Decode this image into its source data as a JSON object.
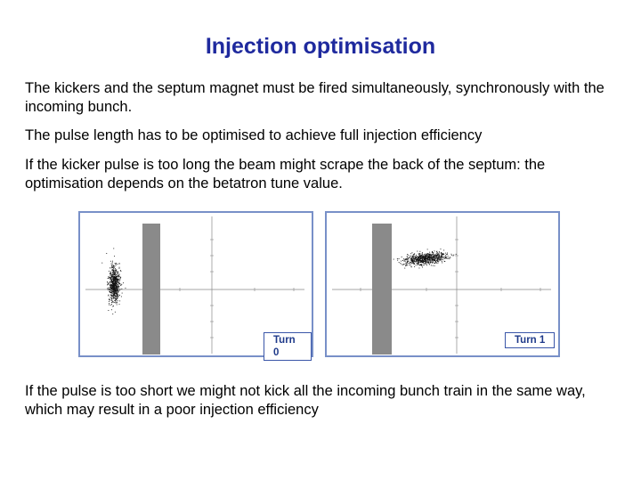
{
  "title": "Injection optimisation",
  "paragraphs": [
    "The kickers and the septum magnet must be fired simultaneously, synchronously with the incoming bunch.",
    "The pulse length has to be optimised to achieve full injection efficiency",
    "If the kicker pulse is too long the beam might scrape the back of the septum: the optimisation depends on the betatron tune value.",
    "If the pulse is too short we might not kick all the incoming bunch train in the same way, which may result in a poor injection efficiency"
  ],
  "figures": [
    {
      "turn_label": "Turn 0"
    },
    {
      "turn_label": "Turn  1"
    }
  ],
  "colors": {
    "title": "#1f2a9e",
    "frame": "#7890c8",
    "septum": "#8a8a8a"
  }
}
